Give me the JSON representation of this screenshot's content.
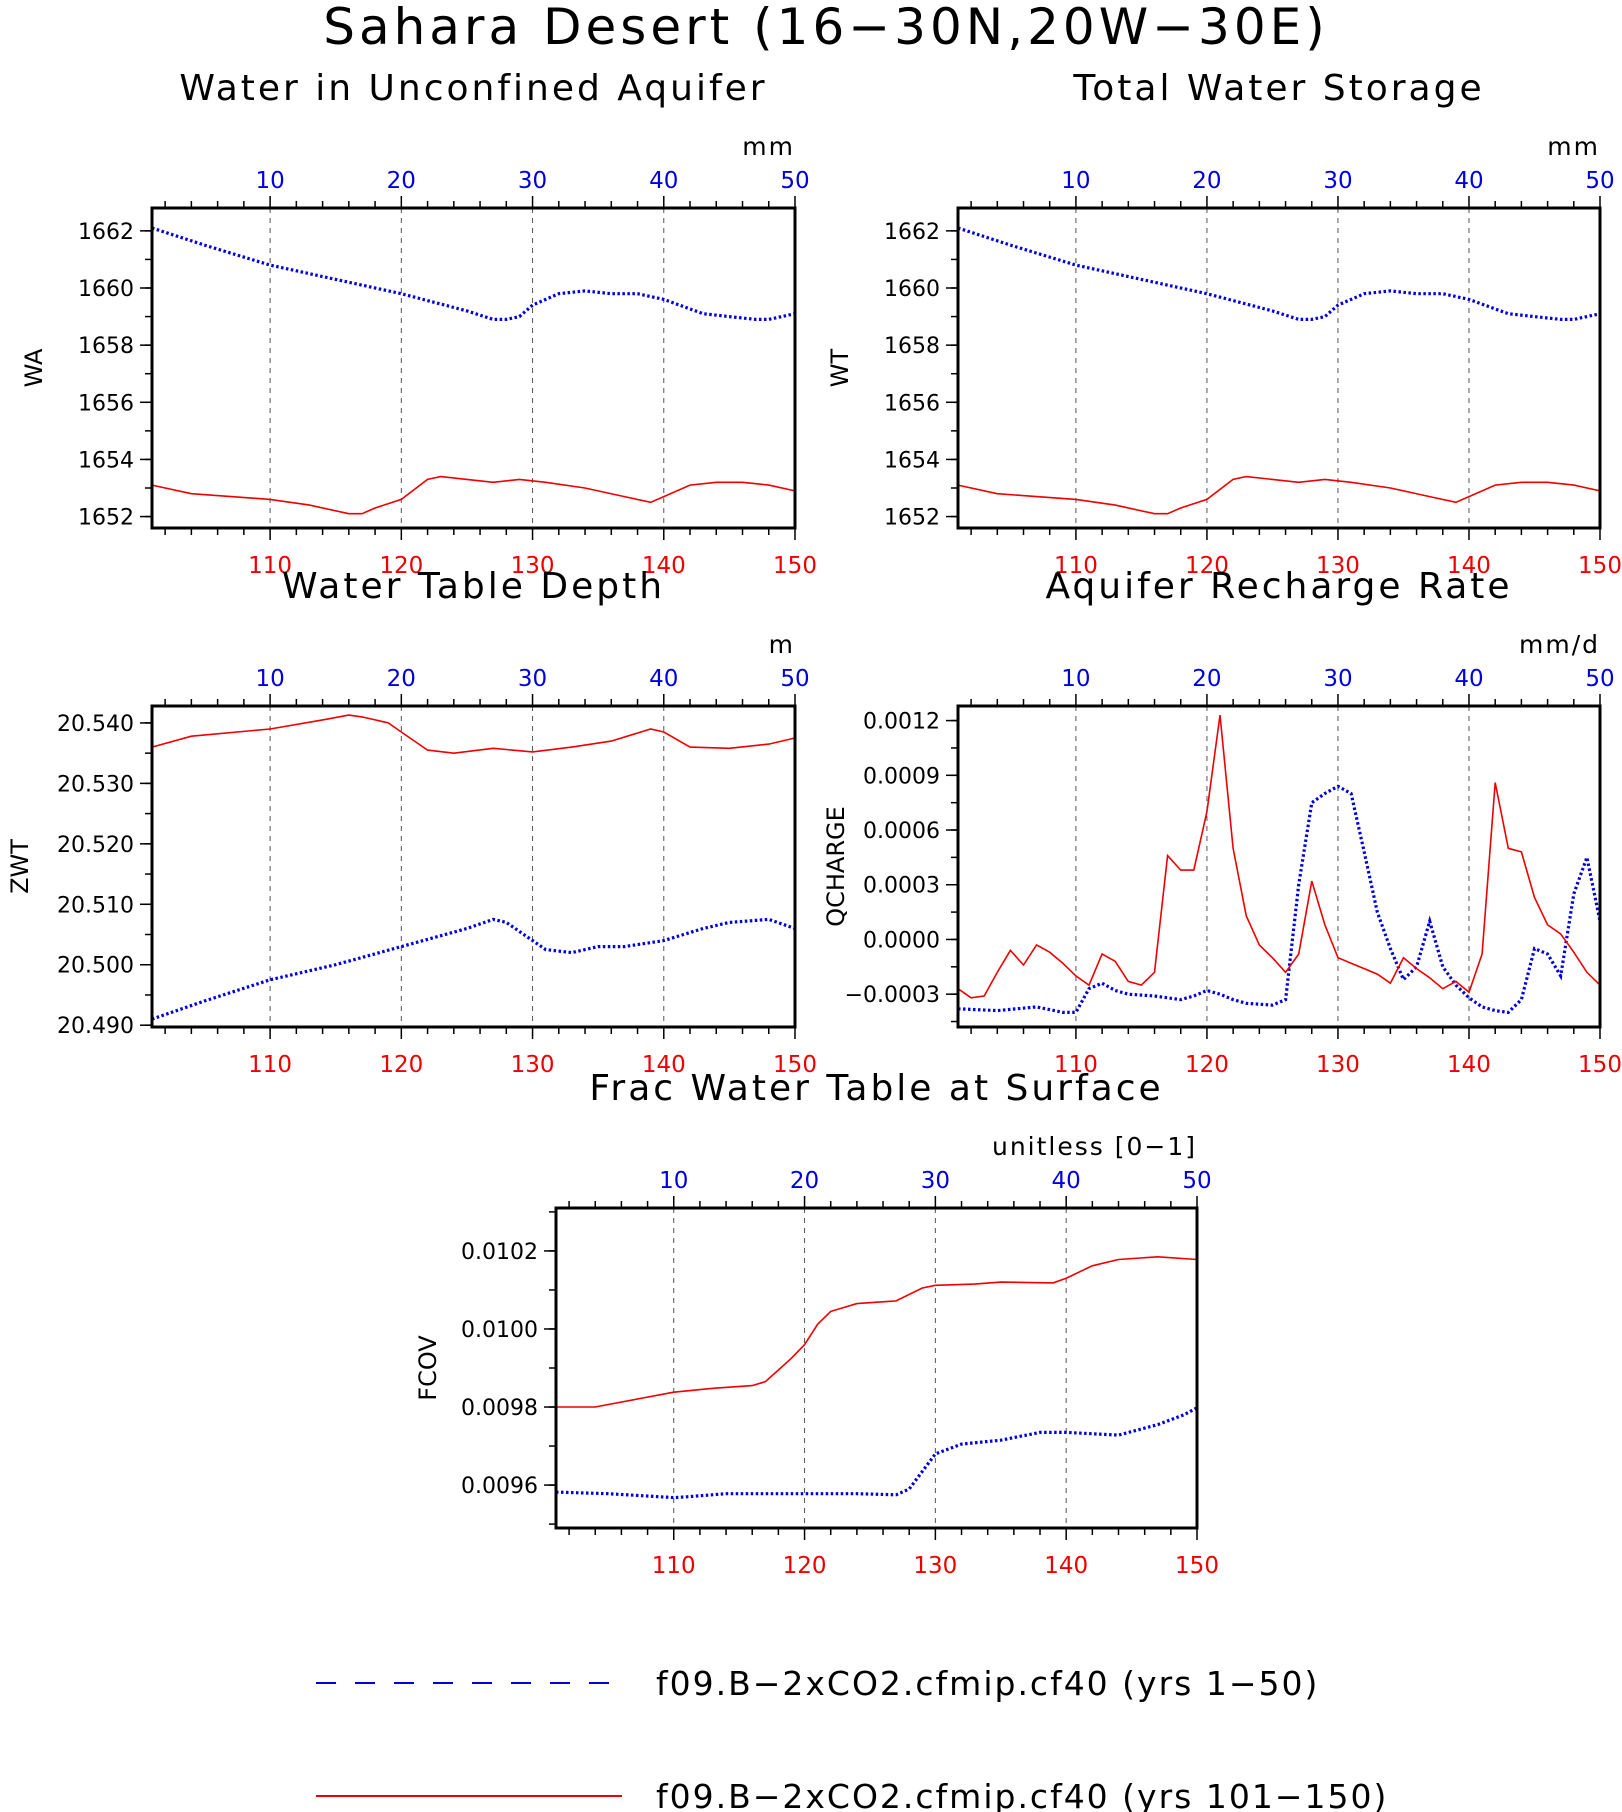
{
  "figure_title": "Sahara Desert (16−30N,20W−30E)",
  "colors": {
    "series_a": "#0000dd",
    "series_b": "#ee0000",
    "axis": "#000000",
    "grid": "#555555"
  },
  "legend": {
    "placement": "bottom-center",
    "items": [
      {
        "label": "f09.B−2xCO2.cfmip.cf40 (yrs 1−50)",
        "style": "dashed",
        "color": "#0000dd"
      },
      {
        "label": "f09.B−2xCO2.cfmip.cf40 (yrs 101−150)",
        "style": "solid",
        "color": "#ee0000"
      }
    ]
  },
  "chart_data": [
    {
      "type": "line",
      "title": "Water in Unconfined Aquifer",
      "units": "mm",
      "ylabel": "WA",
      "ylim": [
        1651.6,
        1662.8
      ],
      "yticks": [
        1652,
        1654,
        1656,
        1658,
        1660,
        1662
      ],
      "ytick_labels": [
        "1652",
        "1654",
        "1656",
        "1658",
        "1660",
        "1662"
      ],
      "top_axis": {
        "range": [
          1,
          50
        ],
        "ticks": [
          10,
          20,
          30,
          40,
          50
        ],
        "labels": [
          "10",
          "20",
          "30",
          "40",
          "50"
        ],
        "color": "#0000dd"
      },
      "bottom_axis": {
        "range": [
          101,
          150
        ],
        "ticks": [
          110,
          120,
          130,
          140,
          150
        ],
        "labels": [
          "110",
          "120",
          "130",
          "140",
          "150"
        ],
        "color": "#ee0000"
      },
      "grid": "vertical-dashed",
      "series": [
        {
          "axis": "top",
          "style": "dotted",
          "color": "#0000dd",
          "x": [
            1,
            5,
            10,
            15,
            20,
            25,
            27,
            28,
            29,
            30,
            32,
            34,
            36,
            38,
            40,
            43,
            45,
            47,
            48,
            50
          ],
          "y": [
            1662.1,
            1661.5,
            1660.8,
            1660.3,
            1659.8,
            1659.2,
            1658.9,
            1658.9,
            1659.0,
            1659.4,
            1659.8,
            1659.9,
            1659.8,
            1659.8,
            1659.6,
            1659.1,
            1659.0,
            1658.9,
            1658.9,
            1659.1
          ]
        },
        {
          "axis": "bottom",
          "style": "solid",
          "color": "#ee0000",
          "x": [
            101,
            104,
            110,
            113,
            116,
            117,
            118,
            120,
            122,
            123,
            125,
            127,
            129,
            131,
            134,
            137,
            139,
            140,
            142,
            144,
            146,
            148,
            150
          ],
          "y": [
            1653.1,
            1652.8,
            1652.6,
            1652.4,
            1652.1,
            1652.1,
            1652.3,
            1652.6,
            1653.3,
            1653.4,
            1653.3,
            1653.2,
            1653.3,
            1653.2,
            1653.0,
            1652.7,
            1652.5,
            1652.7,
            1653.1,
            1653.2,
            1653.2,
            1653.1,
            1652.9
          ]
        }
      ]
    },
    {
      "type": "line",
      "title": "Total Water Storage",
      "units": "mm",
      "ylabel": "WT",
      "ylim": [
        1651.6,
        1662.8
      ],
      "yticks": [
        1652,
        1654,
        1656,
        1658,
        1660,
        1662
      ],
      "ytick_labels": [
        "1652",
        "1654",
        "1656",
        "1658",
        "1660",
        "1662"
      ],
      "top_axis": {
        "range": [
          1,
          50
        ],
        "ticks": [
          10,
          20,
          30,
          40,
          50
        ],
        "labels": [
          "10",
          "20",
          "30",
          "40",
          "50"
        ],
        "color": "#0000dd"
      },
      "bottom_axis": {
        "range": [
          101,
          150
        ],
        "ticks": [
          110,
          120,
          130,
          140,
          150
        ],
        "labels": [
          "110",
          "120",
          "130",
          "140",
          "150"
        ],
        "color": "#ee0000"
      },
      "grid": "vertical-dashed",
      "series": [
        {
          "axis": "top",
          "style": "dotted",
          "color": "#0000dd",
          "x": [
            1,
            5,
            10,
            15,
            20,
            25,
            27,
            28,
            29,
            30,
            32,
            34,
            36,
            38,
            40,
            43,
            45,
            47,
            48,
            50
          ],
          "y": [
            1662.1,
            1661.5,
            1660.8,
            1660.3,
            1659.8,
            1659.2,
            1658.9,
            1658.9,
            1659.0,
            1659.4,
            1659.8,
            1659.9,
            1659.8,
            1659.8,
            1659.6,
            1659.1,
            1659.0,
            1658.9,
            1658.9,
            1659.1
          ]
        },
        {
          "axis": "bottom",
          "style": "solid",
          "color": "#ee0000",
          "x": [
            101,
            104,
            110,
            113,
            116,
            117,
            118,
            120,
            122,
            123,
            125,
            127,
            129,
            131,
            134,
            137,
            139,
            140,
            142,
            144,
            146,
            148,
            150
          ],
          "y": [
            1653.1,
            1652.8,
            1652.6,
            1652.4,
            1652.1,
            1652.1,
            1652.3,
            1652.6,
            1653.3,
            1653.4,
            1653.3,
            1653.2,
            1653.3,
            1653.2,
            1653.0,
            1652.7,
            1652.5,
            1652.7,
            1653.1,
            1653.2,
            1653.2,
            1653.1,
            1652.9
          ]
        }
      ]
    },
    {
      "type": "line",
      "title": "Water Table Depth",
      "units": "m",
      "ylabel": "ZWT",
      "ylim": [
        20.4897,
        20.5428
      ],
      "yticks": [
        20.49,
        20.5,
        20.51,
        20.52,
        20.53,
        20.54
      ],
      "ytick_labels": [
        "20.490",
        "20.500",
        "20.510",
        "20.520",
        "20.530",
        "20.540"
      ],
      "top_axis": {
        "range": [
          1,
          50
        ],
        "ticks": [
          10,
          20,
          30,
          40,
          50
        ],
        "labels": [
          "10",
          "20",
          "30",
          "40",
          "50"
        ],
        "color": "#0000dd"
      },
      "bottom_axis": {
        "range": [
          101,
          150
        ],
        "ticks": [
          110,
          120,
          130,
          140,
          150
        ],
        "labels": [
          "110",
          "120",
          "130",
          "140",
          "150"
        ],
        "color": "#ee0000"
      },
      "grid": "vertical-dashed",
      "series": [
        {
          "axis": "top",
          "style": "dotted",
          "color": "#0000dd",
          "x": [
            1,
            5,
            10,
            15,
            20,
            25,
            27,
            28,
            30,
            31,
            33,
            35,
            37,
            40,
            43,
            45,
            48,
            50
          ],
          "y": [
            20.491,
            20.494,
            20.4975,
            20.5,
            20.503,
            20.506,
            20.5075,
            20.507,
            20.504,
            20.5025,
            20.502,
            20.503,
            20.503,
            20.504,
            20.506,
            20.507,
            20.5075,
            20.506
          ]
        },
        {
          "axis": "bottom",
          "style": "solid",
          "color": "#ee0000",
          "x": [
            101,
            104,
            110,
            114,
            116,
            117,
            119,
            120,
            122,
            124,
            127,
            130,
            133,
            136,
            139,
            140,
            142,
            145,
            148,
            150
          ],
          "y": [
            20.536,
            20.5378,
            20.539,
            20.5405,
            20.5413,
            20.541,
            20.54,
            20.5385,
            20.5355,
            20.535,
            20.5358,
            20.5352,
            20.536,
            20.537,
            20.539,
            20.5385,
            20.536,
            20.5358,
            20.5365,
            20.5375
          ]
        }
      ]
    },
    {
      "type": "line",
      "title": "Aquifer Recharge Rate",
      "units": "mm/d",
      "ylabel": "QCHARGE",
      "ylim": [
        -0.00048,
        0.00128
      ],
      "yticks": [
        -0.0003,
        0.0,
        0.0003,
        0.0006,
        0.0009,
        0.0012
      ],
      "ytick_labels": [
        "−0.0003",
        "0.0000",
        "0.0003",
        "0.0006",
        "0.0009",
        "0.0012"
      ],
      "top_axis": {
        "range": [
          1,
          50
        ],
        "ticks": [
          10,
          20,
          30,
          40,
          50
        ],
        "labels": [
          "10",
          "20",
          "30",
          "40",
          "50"
        ],
        "color": "#0000dd"
      },
      "bottom_axis": {
        "range": [
          101,
          150
        ],
        "ticks": [
          110,
          120,
          130,
          140,
          150
        ],
        "labels": [
          "110",
          "120",
          "130",
          "140",
          "150"
        ],
        "color": "#ee0000"
      },
      "grid": "vertical-dashed",
      "series": [
        {
          "axis": "top",
          "style": "dotted",
          "color": "#0000dd",
          "x": [
            1,
            4,
            7,
            9,
            10,
            11,
            12,
            13,
            14,
            16,
            18,
            19,
            20,
            21,
            22,
            23,
            25,
            26,
            27,
            28,
            29,
            30,
            31,
            32,
            33,
            34,
            35,
            36,
            37,
            38,
            39,
            40,
            41,
            42,
            43,
            44,
            45,
            46,
            47,
            48,
            49,
            50
          ],
          "y": [
            -0.00038,
            -0.00039,
            -0.00037,
            -0.0004,
            -0.0004,
            -0.00027,
            -0.00024,
            -0.00028,
            -0.0003,
            -0.00031,
            -0.00033,
            -0.00031,
            -0.00028,
            -0.0003,
            -0.00033,
            -0.00035,
            -0.00036,
            -0.00033,
            0.0003,
            0.00075,
            0.0008,
            0.00084,
            0.0008,
            0.00048,
            0.00015,
            -5e-05,
            -0.00022,
            -0.00015,
            0.0001,
            -0.00015,
            -0.00025,
            -0.00032,
            -0.00037,
            -0.00039,
            -0.0004,
            -0.00033,
            -5e-05,
            -8e-05,
            -0.0002,
            0.00025,
            0.00045,
            0.0001
          ]
        },
        {
          "axis": "bottom",
          "style": "solid",
          "color": "#ee0000",
          "x": [
            101,
            102,
            103,
            104,
            105,
            106,
            107,
            108,
            109,
            110,
            111,
            112,
            113,
            114,
            115,
            116,
            117,
            118,
            119,
            120,
            121,
            122,
            123,
            124,
            125,
            126,
            127,
            128,
            129,
            130,
            131,
            132,
            133,
            134,
            135,
            136,
            137,
            138,
            139,
            140,
            141,
            142,
            143,
            144,
            145,
            146,
            147,
            148,
            149,
            150
          ],
          "y": [
            -0.00027,
            -0.00032,
            -0.00031,
            -0.00018,
            -6e-05,
            -0.00014,
            -3e-05,
            -7e-05,
            -0.00013,
            -0.0002,
            -0.00025,
            -8e-05,
            -0.00012,
            -0.00023,
            -0.00025,
            -0.00018,
            0.00046,
            0.00038,
            0.00038,
            0.0007,
            0.00123,
            0.0005,
            0.00013,
            -3e-05,
            -0.0001,
            -0.00018,
            -8e-05,
            0.00032,
            8e-05,
            -0.0001,
            -0.00013,
            -0.00016,
            -0.00019,
            -0.00024,
            -0.0001,
            -0.00016,
            -0.00021,
            -0.00027,
            -0.00023,
            -0.00029,
            -8e-05,
            0.00086,
            0.0005,
            0.00048,
            0.00023,
            8e-05,
            3e-05,
            -7e-05,
            -0.00018,
            -0.00025
          ]
        }
      ]
    },
    {
      "type": "line",
      "title": "Frac Water Table at Surface",
      "units": "unitless [0−1]",
      "ylabel": "FCOV",
      "ylim": [
        0.00949,
        0.01031
      ],
      "yticks": [
        0.0096,
        0.0098,
        0.01,
        0.0102
      ],
      "ytick_labels": [
        "0.0096",
        "0.0098",
        "0.0100",
        "0.0102"
      ],
      "top_axis": {
        "range": [
          1,
          50
        ],
        "ticks": [
          10,
          20,
          30,
          40,
          50
        ],
        "labels": [
          "10",
          "20",
          "30",
          "40",
          "50"
        ],
        "color": "#0000dd"
      },
      "bottom_axis": {
        "range": [
          101,
          150
        ],
        "ticks": [
          110,
          120,
          130,
          140,
          150
        ],
        "labels": [
          "110",
          "120",
          "130",
          "140",
          "150"
        ],
        "color": "#ee0000"
      },
      "grid": "vertical-dashed",
      "series": [
        {
          "axis": "top",
          "style": "dotted",
          "color": "#0000dd",
          "x": [
            1,
            5,
            10,
            11,
            14,
            20,
            24,
            27,
            28,
            30,
            32,
            35,
            38,
            40,
            44,
            47,
            49,
            50
          ],
          "y": [
            0.009582,
            0.009578,
            0.009568,
            0.00957,
            0.009578,
            0.009578,
            0.009578,
            0.009575,
            0.00959,
            0.00968,
            0.009705,
            0.009715,
            0.009735,
            0.009735,
            0.009728,
            0.009755,
            0.00978,
            0.009798
          ]
        },
        {
          "axis": "bottom",
          "style": "solid",
          "color": "#ee0000",
          "x": [
            101,
            104,
            110,
            113,
            116,
            117,
            118,
            119,
            120,
            121,
            122,
            124,
            127,
            129,
            130,
            133,
            135,
            139,
            140,
            142,
            144,
            147,
            150
          ],
          "y": [
            0.0098,
            0.0098,
            0.009838,
            0.009848,
            0.009855,
            0.009865,
            0.009895,
            0.009925,
            0.00996,
            0.010012,
            0.010045,
            0.010065,
            0.010072,
            0.010105,
            0.010112,
            0.010115,
            0.01012,
            0.010118,
            0.01013,
            0.010162,
            0.010178,
            0.010185,
            0.010178
          ]
        }
      ]
    }
  ]
}
